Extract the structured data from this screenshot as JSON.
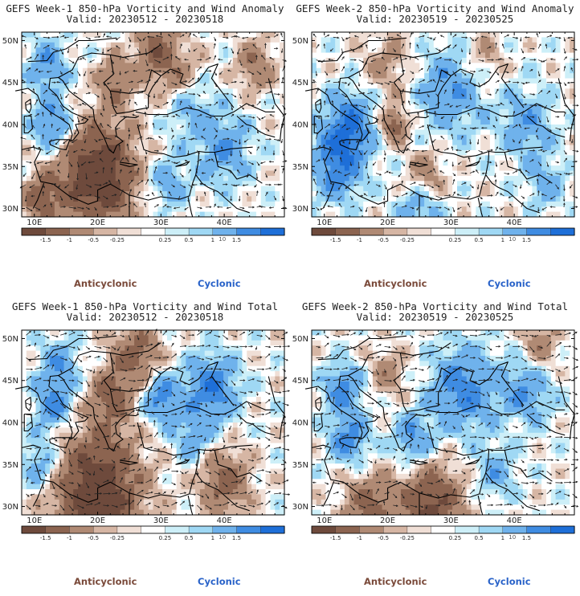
{
  "panels": [
    {
      "title_line1": "GEFS Week-1 850-hPa Vorticity and Wind Anomaly",
      "title_line2": "Valid: 20230512 - 20230518",
      "variant": 0
    },
    {
      "title_line1": "GEFS Week-2 850-hPa Vorticity and Wind Anomaly",
      "title_line2": "Valid: 20230519 - 20230525",
      "variant": 1
    },
    {
      "title_line1": "GEFS Week-1 850-hPa Vorticity and Wind Total",
      "title_line2": "Valid: 20230512 - 20230518",
      "variant": 2
    },
    {
      "title_line1": "GEFS Week-2 850-hPa Vorticity and Wind Total",
      "title_line2": "Valid: 20230519 - 20230525",
      "variant": 3
    }
  ],
  "lat_labels": [
    "50N",
    "45N",
    "40N",
    "35N",
    "30N"
  ],
  "lon_labels": [
    "10E",
    "20E",
    "30E",
    "40E"
  ],
  "colorbar": {
    "tick_labels": [
      "-1.5",
      "-1",
      "-0.5",
      "-0.25",
      "0.25",
      "0.5",
      "1",
      "1.5"
    ],
    "scale_label": "10",
    "colors": [
      "#6e4a3c",
      "#8c6450",
      "#b08a74",
      "#d6b6a4",
      "#f0dfd6",
      "#ffffff",
      "#cdeff8",
      "#9fd8f4",
      "#6fb2ec",
      "#3f8ce2",
      "#1e6fd8"
    ]
  },
  "legend_labels": {
    "anticyclonic": "Anticyclonic",
    "cyclonic": "Cyclonic"
  }
}
